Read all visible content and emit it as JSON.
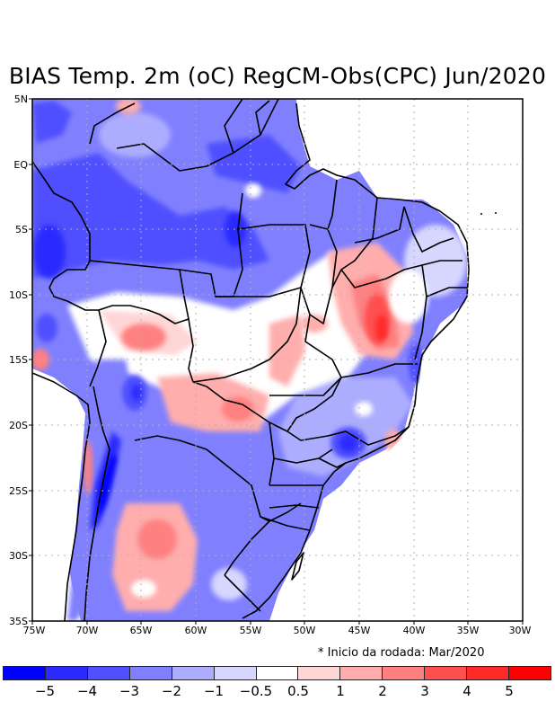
{
  "title": "BIAS Temp. 2m (oC) RegCM-Obs(CPC) Jun/2020",
  "note": "* Inicio da rodada: Mar/2020",
  "map": {
    "lat_labels": [
      "5N",
      "EQ",
      "5S",
      "10S",
      "15S",
      "20S",
      "25S",
      "30S",
      "35S"
    ],
    "lon_labels": [
      "75W",
      "70W",
      "65W",
      "60W",
      "55W",
      "50W",
      "45W",
      "40W",
      "35W",
      "30W"
    ],
    "lon_range": [
      -75,
      -30
    ],
    "lat_range": [
      -35,
      5
    ],
    "grid": "dotted"
  },
  "colorbar": {
    "colors": [
      "#0000ff",
      "#2b2bff",
      "#5050ff",
      "#8080ff",
      "#adadff",
      "#d6d6ff",
      "#ffffff",
      "#ffd6d6",
      "#ffadad",
      "#ff8080",
      "#ff5050",
      "#ff2b2b",
      "#ff0000"
    ],
    "labels": [
      "-5",
      "-4",
      "-3",
      "-2",
      "-1",
      "-0.5",
      "0.5",
      "1",
      "2",
      "3",
      "4",
      "5"
    ]
  }
}
